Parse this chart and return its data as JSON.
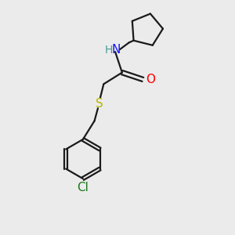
{
  "background_color": "#ebebeb",
  "bond_color": "#1a1a1a",
  "N_color": "#1414ff",
  "O_color": "#ff0000",
  "S_color": "#b8b800",
  "Cl_color": "#1a7a1a",
  "H_color": "#4a9a9a",
  "line_width": 1.6,
  "font_size": 11,
  "figsize": [
    3.0,
    3.0
  ],
  "dpi": 100,
  "xlim": [
    0,
    10
  ],
  "ylim": [
    0,
    10
  ]
}
